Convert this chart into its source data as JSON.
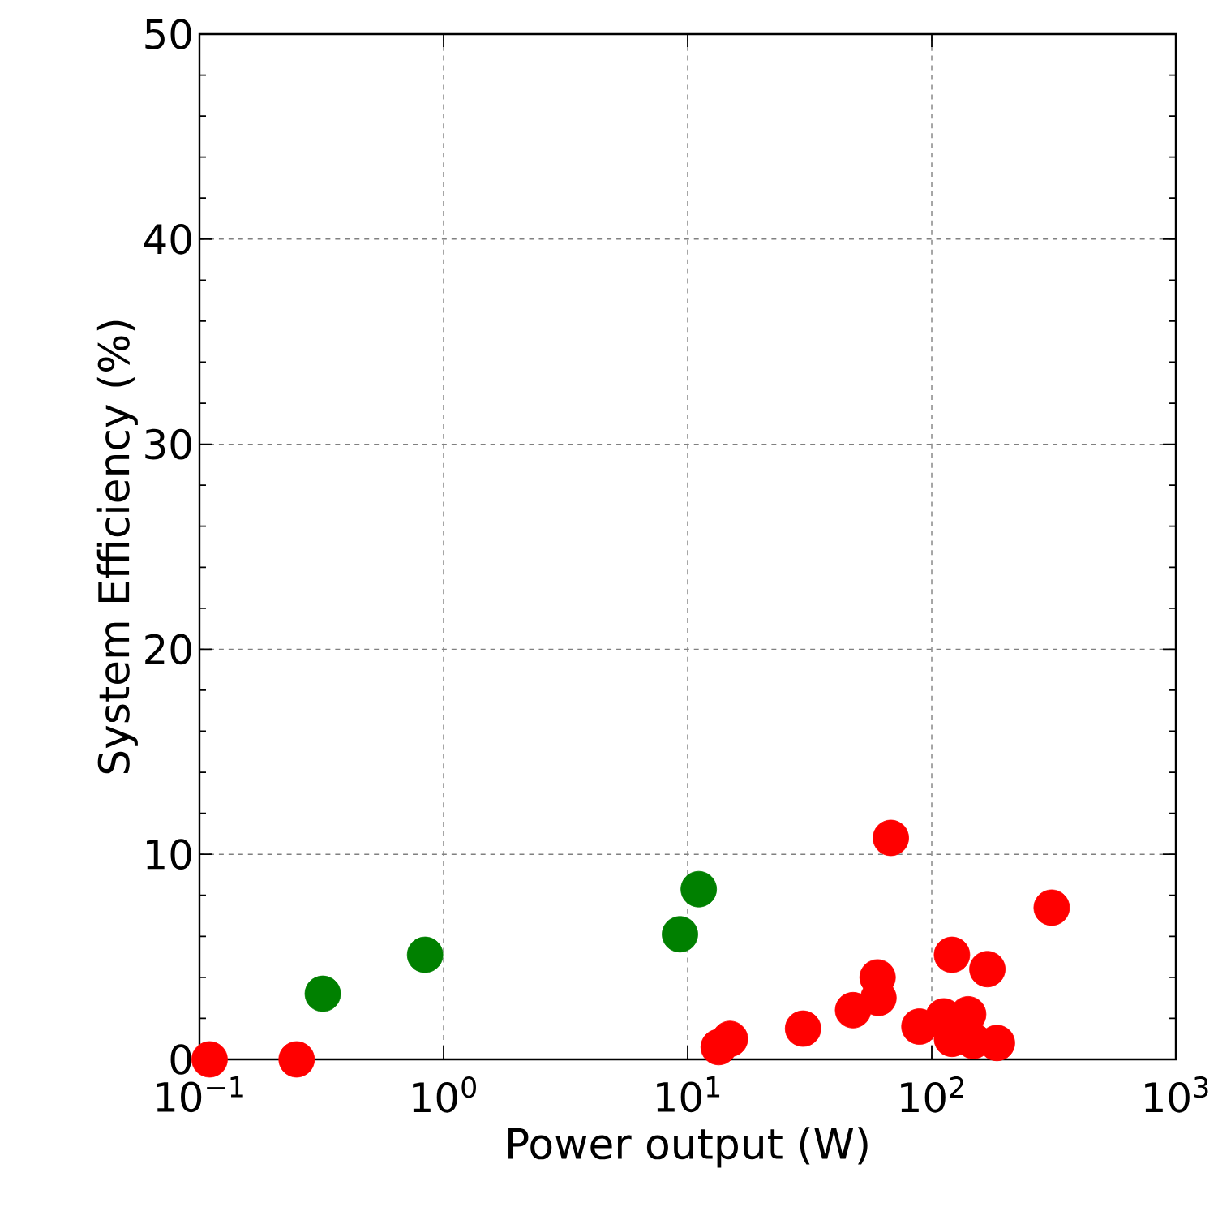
{
  "chart_data": {
    "type": "scatter",
    "xlabel": "Power output (W)",
    "ylabel": "System Efficiency (%)",
    "log": "x",
    "grid": true,
    "marker": "circle",
    "xlim": [
      0.1,
      1000
    ],
    "ylim": [
      0,
      50
    ],
    "xticks": [
      {
        "value": 0.1,
        "label": "10$^{−1}$"
      },
      {
        "value": 1,
        "label": "10$^{0}$"
      },
      {
        "value": 10,
        "label": "10$^{1}$"
      },
      {
        "value": 100,
        "label": "10$^{2}$"
      },
      {
        "value": 1000,
        "label": "10$^{3}$"
      }
    ],
    "yticks": [
      0,
      10,
      20,
      30,
      40,
      50
    ],
    "series": [
      {
        "color": "#008000",
        "x": [
          0.32,
          0.84,
          9.3,
          11.1
        ],
        "values": [
          3.2,
          5.1,
          6.1,
          8.3
        ]
      },
      {
        "color": "#ff0000",
        "x": [
          0.11,
          0.25,
          68,
          310,
          121,
          169,
          60,
          60.5,
          47.6,
          29.7,
          14.9,
          13.4,
          89,
          112,
          141,
          121,
          185,
          148
        ],
        "values": [
          0.0,
          0.0,
          10.8,
          7.4,
          5.1,
          4.4,
          4.0,
          3.0,
          2.4,
          1.5,
          1.0,
          0.6,
          1.6,
          2.1,
          2.2,
          1.0,
          0.8,
          0.9
        ]
      }
    ]
  }
}
